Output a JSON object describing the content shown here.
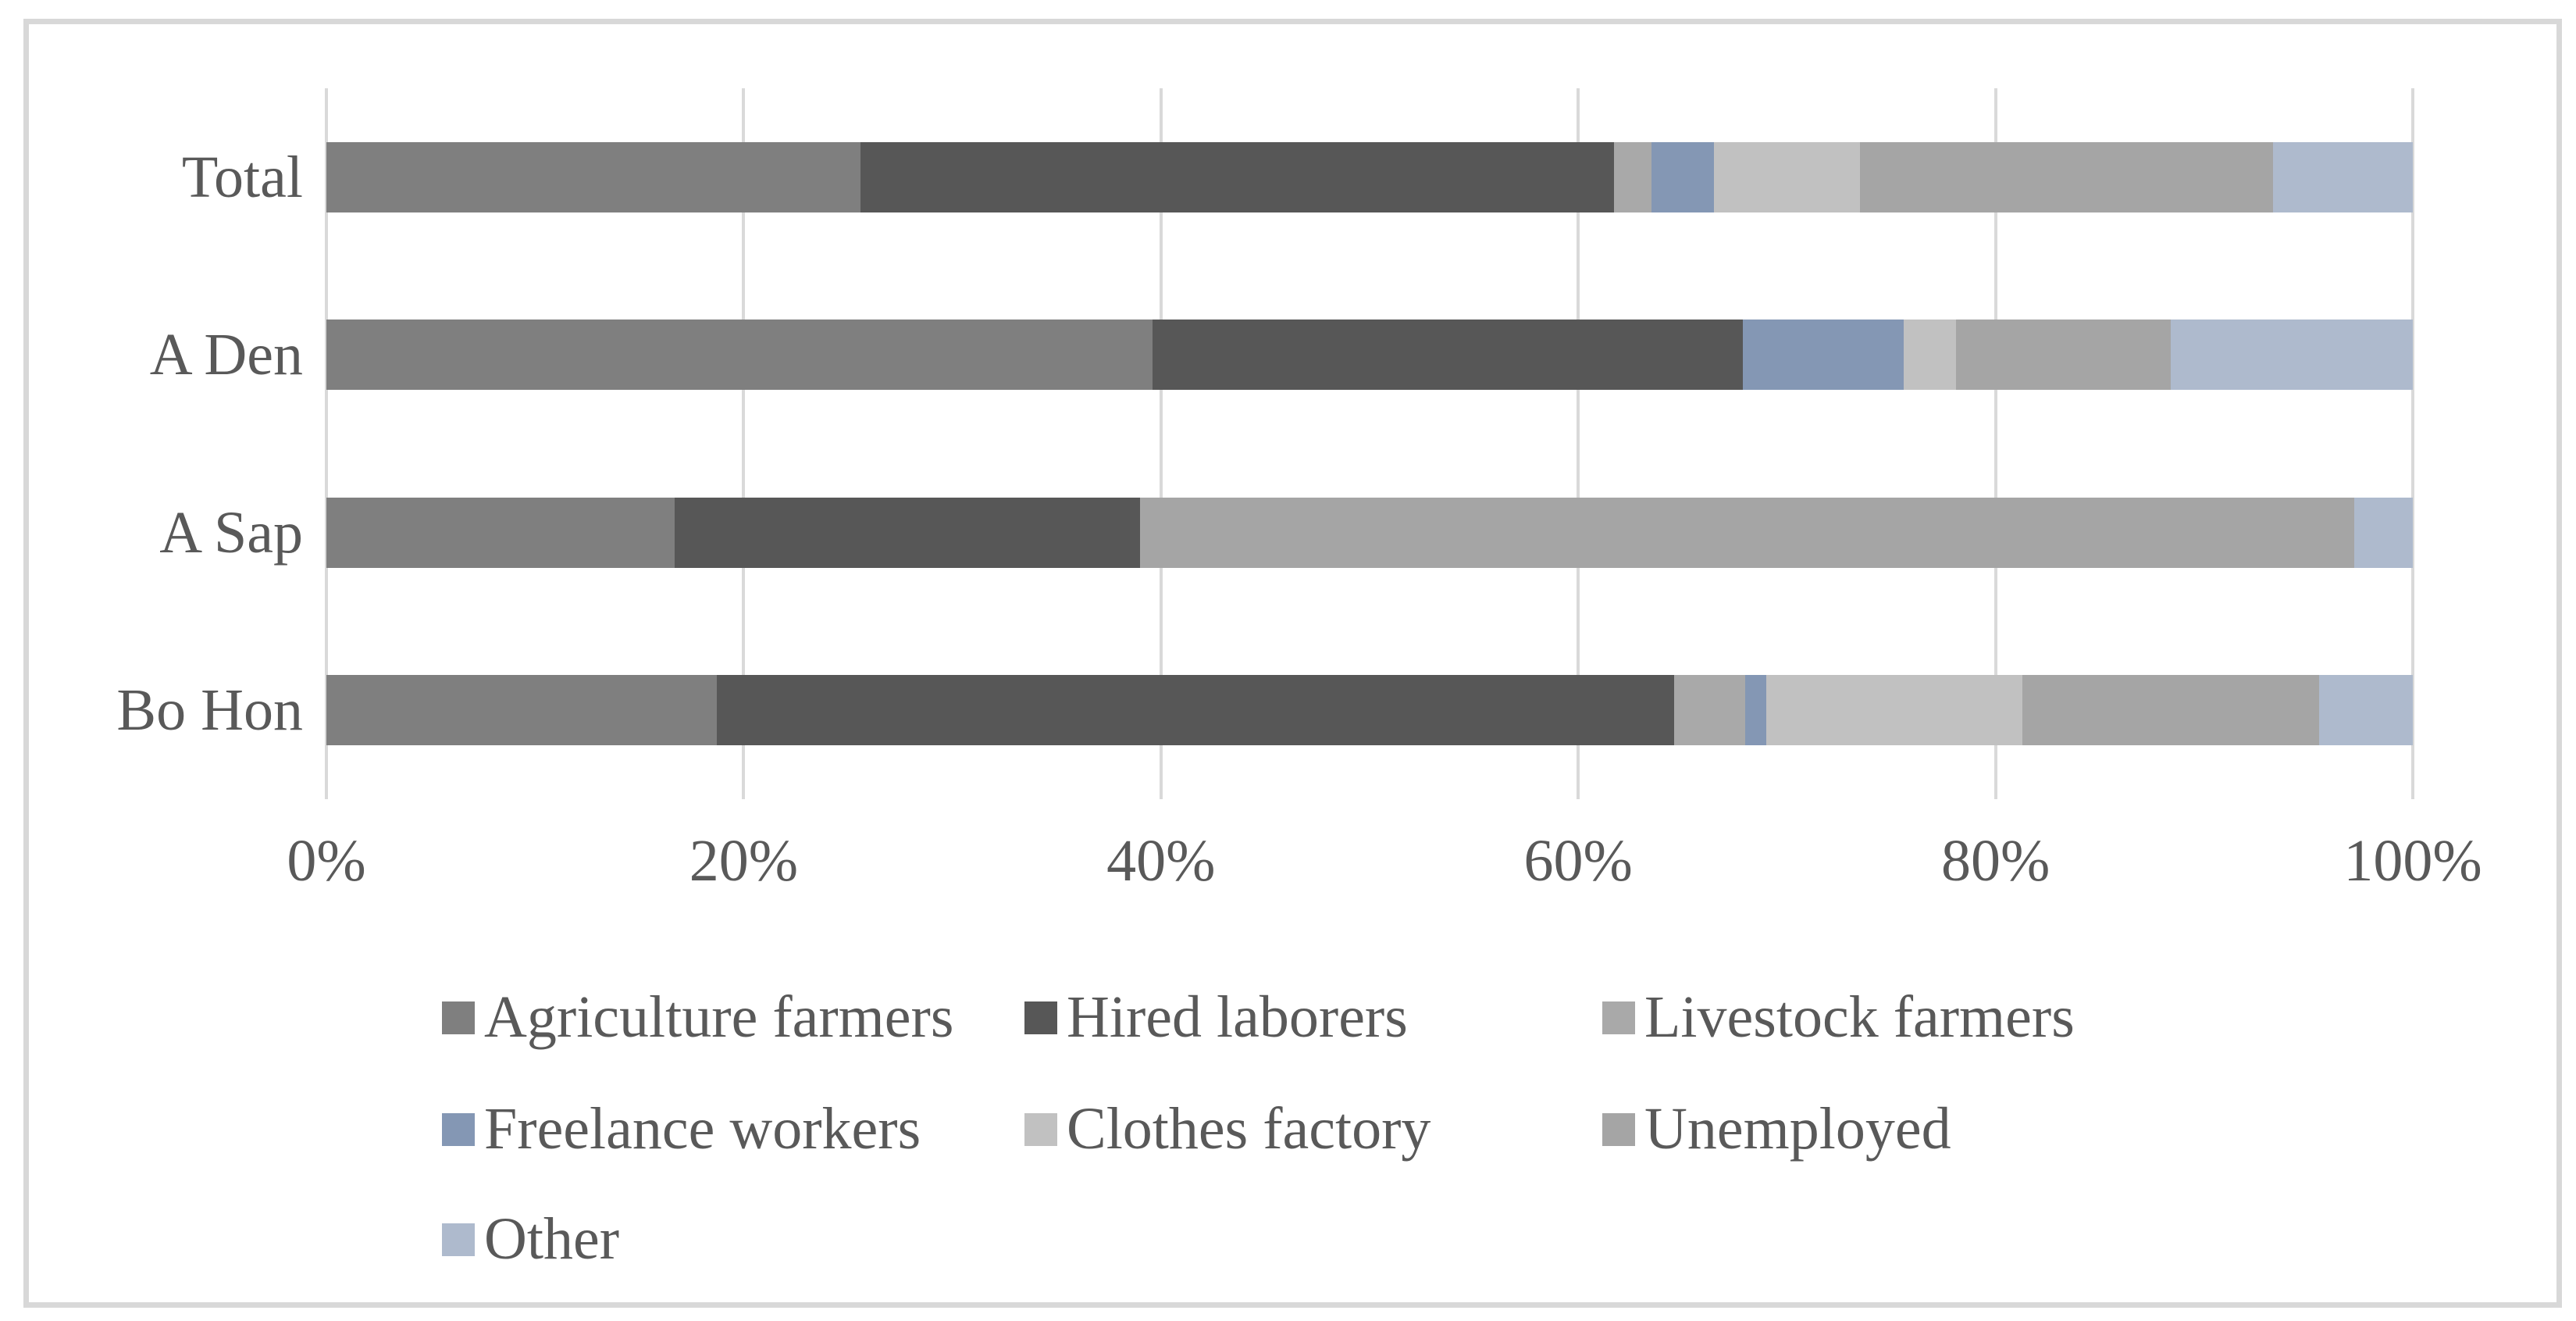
{
  "chart_data": {
    "type": "bar",
    "variant": "horizontal-stacked-100pct",
    "categories": [
      "Total",
      "A Den",
      "A Sap",
      "Bo Hon"
    ],
    "series": [
      {
        "name": "Agriculture farmers",
        "color": "#7f7f7f",
        "values": [
          25.6,
          39.6,
          16.7,
          18.7
        ]
      },
      {
        "name": "Hired laborers",
        "color": "#575757",
        "values": [
          36.1,
          28.3,
          22.3,
          45.9
        ]
      },
      {
        "name": "Livestock farmers",
        "color": "#a9a9a9",
        "values": [
          1.8,
          0,
          0,
          3.4
        ]
      },
      {
        "name": "Freelance workers",
        "color": "#8497b4",
        "values": [
          3.0,
          7.7,
          0,
          1.0
        ]
      },
      {
        "name": "Clothes factory",
        "color": "#c1c1c1",
        "values": [
          7.0,
          2.5,
          0,
          12.3
        ]
      },
      {
        "name": "Unemployed",
        "color": "#a5a5a5",
        "values": [
          19.8,
          10.3,
          58.2,
          14.2
        ]
      },
      {
        "name": "Other",
        "color": "#aebacd",
        "values": [
          6.7,
          11.6,
          2.8,
          4.5
        ]
      }
    ],
    "x_ticks": [
      "0%",
      "20%",
      "40%",
      "60%",
      "80%",
      "100%"
    ],
    "xlim": [
      0,
      100
    ],
    "xlabel": "",
    "ylabel": "",
    "title": "",
    "grid": true,
    "legend_position": "bottom",
    "legend_rows": [
      [
        "Agriculture farmers",
        "Hired laborers",
        "Livestock farmers"
      ],
      [
        "Freelance workers",
        "Clothes factory",
        "Unemployed"
      ],
      [
        "Other"
      ]
    ]
  },
  "colors": {
    "text": "#595959",
    "gridline": "#d9d9d9",
    "frame_border": "#d8d8d8",
    "background": "#ffffff"
  }
}
